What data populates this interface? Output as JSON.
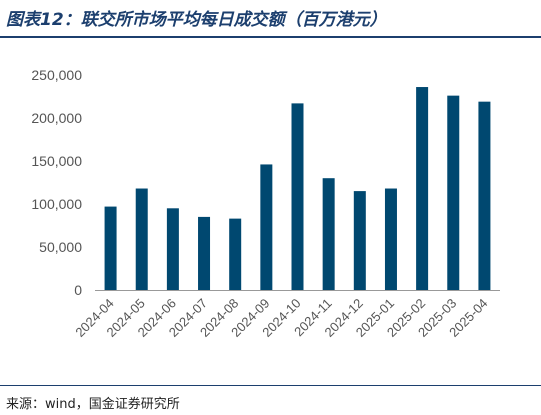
{
  "figure": {
    "title": "图表12：联交所市场平均每日成交额（百万港元）",
    "source": "来源：wind，国金证券研究所"
  },
  "colors": {
    "bar": "#004870",
    "title": "#1c3f6e",
    "axis": "#999999"
  },
  "chart_data": {
    "type": "bar",
    "categories": [
      "2024-04",
      "2024-05",
      "2024-06",
      "2024-07",
      "2024-08",
      "2024-09",
      "2024-10",
      "2024-11",
      "2024-12",
      "2025-01",
      "2025-02",
      "2025-03",
      "2025-04"
    ],
    "values": [
      97000,
      118000,
      95000,
      85000,
      83000,
      146000,
      217000,
      130000,
      115000,
      118000,
      236000,
      226000,
      219000
    ],
    "ylim": [
      0,
      250000
    ],
    "yticks": [
      0,
      50000,
      100000,
      150000,
      200000,
      250000
    ],
    "ytick_labels": [
      "0",
      "50,000",
      "100,000",
      "150,000",
      "200,000",
      "250,000"
    ],
    "grid": false,
    "legend": "none"
  }
}
